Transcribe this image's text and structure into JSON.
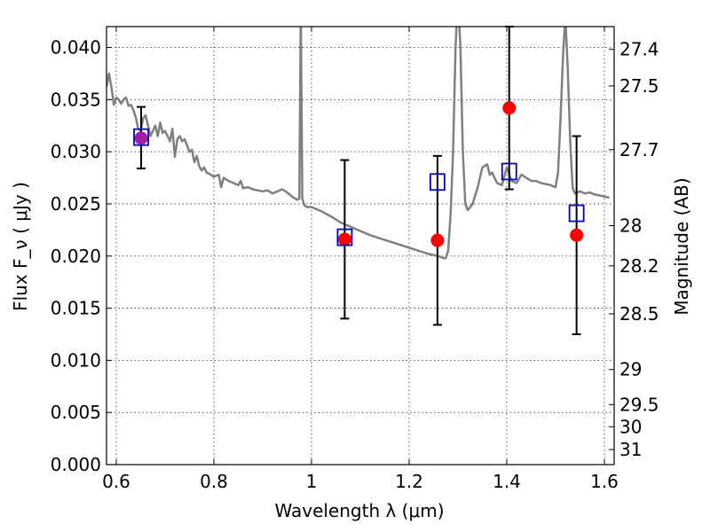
{
  "chart_data": {
    "type": "scatter",
    "title": "",
    "xlabel": "Wavelength  λ (μm)",
    "ylabel": "Flux  F_ν  ( μJy )",
    "ylabel_right": "Magnitude (AB)",
    "xlim": [
      0.58,
      1.62
    ],
    "ylim": [
      0.0,
      0.042
    ],
    "grid": true,
    "x_ticks": [
      "0.6",
      "0.8",
      "1",
      "1.2",
      "1.4",
      "1.6"
    ],
    "x_tick_values": [
      0.6,
      0.8,
      1.0,
      1.2,
      1.4,
      1.6
    ],
    "y_ticks": [
      "0.000",
      "0.005",
      "0.010",
      "0.015",
      "0.020",
      "0.025",
      "0.030",
      "0.035",
      "0.040"
    ],
    "y_tick_values": [
      0.0,
      0.005,
      0.01,
      0.015,
      0.02,
      0.025,
      0.03,
      0.035,
      0.04
    ],
    "right_ticks": [
      "27.4",
      "27.5",
      "27.7",
      "28",
      "28.2",
      "28.5",
      "29",
      "29.5",
      "30",
      "31"
    ],
    "right_tick_values": [
      27.4,
      27.5,
      27.7,
      28.0,
      28.2,
      28.5,
      29.0,
      29.5,
      30.0,
      31.0
    ],
    "colors": {
      "model": "#808080",
      "observed": "#ff0000",
      "synthetic": "#0000cc",
      "overlap": "#a020a0",
      "errorbar": "#000000"
    },
    "model_spectrum": {
      "x": [
        0.58,
        0.585,
        0.59,
        0.595,
        0.6,
        0.605,
        0.61,
        0.615,
        0.62,
        0.625,
        0.63,
        0.635,
        0.64,
        0.645,
        0.65,
        0.655,
        0.66,
        0.665,
        0.67,
        0.675,
        0.68,
        0.685,
        0.69,
        0.695,
        0.7,
        0.705,
        0.71,
        0.715,
        0.72,
        0.725,
        0.73,
        0.735,
        0.74,
        0.745,
        0.75,
        0.755,
        0.76,
        0.765,
        0.77,
        0.775,
        0.78,
        0.785,
        0.79,
        0.8,
        0.81,
        0.815,
        0.82,
        0.83,
        0.84,
        0.85,
        0.855,
        0.86,
        0.87,
        0.88,
        0.89,
        0.9,
        0.91,
        0.92,
        0.93,
        0.94,
        0.95,
        0.96,
        0.97,
        0.975,
        0.978,
        0.981,
        0.985,
        0.99,
        1.0,
        1.02,
        1.04,
        1.06,
        1.08,
        1.1,
        1.12,
        1.14,
        1.16,
        1.18,
        1.2,
        1.22,
        1.24,
        1.26,
        1.27,
        1.275,
        1.28,
        1.285,
        1.29,
        1.295,
        1.3,
        1.305,
        1.31,
        1.315,
        1.32,
        1.33,
        1.34,
        1.35,
        1.36,
        1.365,
        1.37,
        1.38,
        1.39,
        1.4,
        1.41,
        1.42,
        1.43,
        1.44,
        1.45,
        1.46,
        1.47,
        1.48,
        1.49,
        1.5,
        1.505,
        1.51,
        1.515,
        1.52,
        1.525,
        1.53,
        1.535,
        1.54,
        1.55,
        1.56,
        1.57,
        1.58,
        1.59,
        1.6,
        1.61
      ],
      "y": [
        0.0362,
        0.0375,
        0.0362,
        0.0345,
        0.0352,
        0.035,
        0.0346,
        0.035,
        0.0352,
        0.0344,
        0.0345,
        0.034,
        0.0333,
        0.0322,
        0.032,
        0.0332,
        0.0335,
        0.0325,
        0.0315,
        0.032,
        0.0325,
        0.0315,
        0.0328,
        0.0318,
        0.032,
        0.0315,
        0.031,
        0.0322,
        0.0295,
        0.0312,
        0.0315,
        0.031,
        0.0312,
        0.0306,
        0.03,
        0.0302,
        0.029,
        0.0296,
        0.0286,
        0.0282,
        0.0285,
        0.028,
        0.0279,
        0.0276,
        0.0278,
        0.0266,
        0.0275,
        0.0272,
        0.027,
        0.0268,
        0.0272,
        0.0265,
        0.0266,
        0.0264,
        0.0263,
        0.0262,
        0.0263,
        0.026,
        0.0262,
        0.0264,
        0.0261,
        0.0257,
        0.0254,
        0.0255,
        0.044,
        0.0255,
        0.0249,
        0.0247,
        0.0247,
        0.0243,
        0.0238,
        0.0232,
        0.0228,
        0.0224,
        0.022,
        0.0217,
        0.0214,
        0.0211,
        0.0208,
        0.0205,
        0.0202,
        0.02,
        0.0198,
        0.0198,
        0.0205,
        0.024,
        0.03,
        0.04,
        0.045,
        0.04,
        0.03,
        0.025,
        0.0244,
        0.025,
        0.0265,
        0.0285,
        0.0288,
        0.0278,
        0.028,
        0.027,
        0.0268,
        0.0285,
        0.0272,
        0.027,
        0.0278,
        0.0275,
        0.0272,
        0.0272,
        0.027,
        0.0269,
        0.0268,
        0.0266,
        0.028,
        0.033,
        0.039,
        0.043,
        0.038,
        0.031,
        0.0265,
        0.026,
        0.0262,
        0.026,
        0.0261,
        0.0259,
        0.0258,
        0.0257,
        0.0256
      ]
    },
    "observed_points": [
      {
        "x": 0.651,
        "y": 0.0313,
        "yerr_low": 0.0029,
        "yerr_high": 0.003
      },
      {
        "x": 1.068,
        "y": 0.0216,
        "yerr_low": 0.0076,
        "yerr_high": 0.0076
      },
      {
        "x": 1.258,
        "y": 0.0215,
        "yerr_low": 0.0081,
        "yerr_high": 0.0081
      },
      {
        "x": 1.405,
        "y": 0.0342,
        "yerr_low": 0.0078,
        "yerr_high": 0.0078
      },
      {
        "x": 1.543,
        "y": 0.022,
        "yerr_low": 0.0095,
        "yerr_high": 0.0095
      }
    ],
    "synthetic_points": [
      {
        "x": 0.651,
        "y": 0.0314
      },
      {
        "x": 1.068,
        "y": 0.0218
      },
      {
        "x": 1.258,
        "y": 0.0271
      },
      {
        "x": 1.405,
        "y": 0.0281
      },
      {
        "x": 1.543,
        "y": 0.0241
      }
    ]
  }
}
